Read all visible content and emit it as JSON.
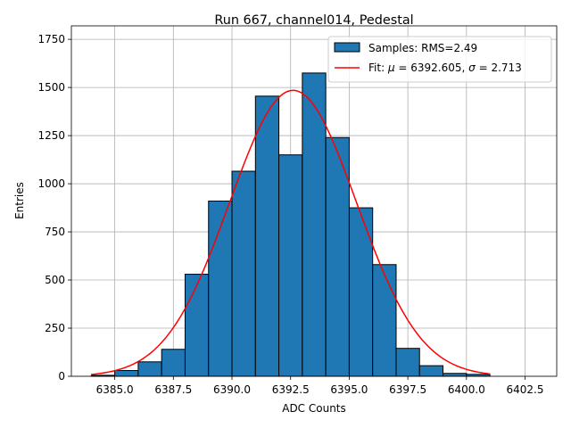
{
  "chart_data": {
    "type": "bar",
    "title": "Run 667, channel014, Pedestal",
    "xlabel": "ADC Counts",
    "ylabel": "Entries",
    "xlim": [
      6383.15,
      6403.85
    ],
    "ylim": [
      0,
      1820
    ],
    "xticks": [
      6385.0,
      6387.5,
      6390.0,
      6392.5,
      6395.0,
      6397.5,
      6400.0,
      6402.5
    ],
    "xtick_labels": [
      "6385.0",
      "6387.5",
      "6390.0",
      "6392.5",
      "6395.0",
      "6397.5",
      "6400.0",
      "6402.5"
    ],
    "yticks": [
      0,
      250,
      500,
      750,
      1000,
      1250,
      1500,
      1750
    ],
    "ytick_labels": [
      "0",
      "250",
      "500",
      "750",
      "1000",
      "1250",
      "1500",
      "1750"
    ],
    "grid": true,
    "bin_edges": [
      6384,
      6385,
      6386,
      6387,
      6388,
      6389,
      6390,
      6391,
      6392,
      6393,
      6394,
      6395,
      6396,
      6397,
      6398,
      6399,
      6400,
      6401
    ],
    "counts": [
      5,
      30,
      75,
      140,
      530,
      910,
      1065,
      1455,
      1150,
      1575,
      1240,
      875,
      580,
      145,
      55,
      15,
      10
    ],
    "series": [
      {
        "name": "Samples: RMS=2.49",
        "kind": "histogram",
        "color": "#1f77b4"
      },
      {
        "name": "Fit: μ = 6392.605, σ = 2.713",
        "kind": "gaussian-fit",
        "color": "#ff0000",
        "mu": 6392.605,
        "sigma": 2.713,
        "amplitude": 1485,
        "x_range": [
          6384,
          6401
        ]
      }
    ],
    "legend": {
      "position": "top-right",
      "entries": [
        {
          "label": "Samples: RMS=2.49",
          "marker": "patch"
        },
        {
          "label_prefix": "Fit: ",
          "mu_symbol": "μ",
          "mu_text": " = 6392.605, ",
          "sigma_symbol": "σ",
          "sigma_text": " = 2.713",
          "marker": "line"
        }
      ]
    }
  }
}
